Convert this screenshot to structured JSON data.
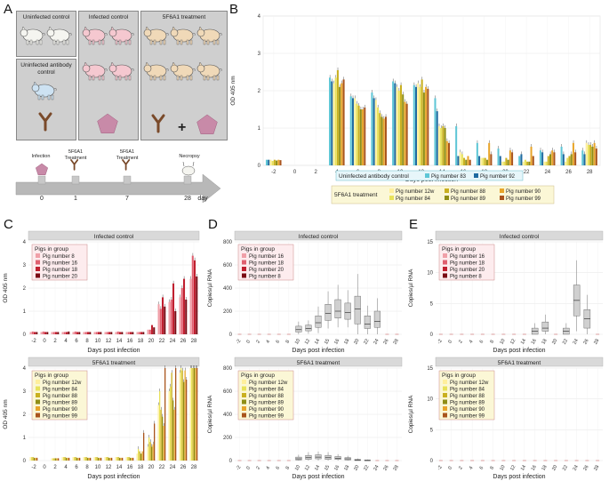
{
  "panels": {
    "a": "A",
    "b": "B",
    "c": "C",
    "d": "D",
    "e": "E"
  },
  "panel_a": {
    "groups": [
      "Uninfected control",
      "Infected control",
      "5F6A1 treatment",
      "Uninfected antibody control"
    ],
    "plus": "+",
    "timeline": {
      "events": [
        {
          "label": "Infection",
          "day": "0"
        },
        {
          "label": "5F6A1 Treatment",
          "day": "1"
        },
        {
          "label": "5F6A1 Treatment",
          "day": "7"
        },
        {
          "label": "Necropsy",
          "day": "28"
        }
      ],
      "unit": "day"
    }
  },
  "chart_data": [
    {
      "id": "B",
      "type": "bar",
      "xlabel": "Days post infection",
      "ylabel": "OD 405 nm",
      "ylim": [
        0,
        4
      ],
      "yticks": [
        "0",
        "1",
        "2",
        "3",
        "4"
      ],
      "categories": [
        "-2",
        "0",
        "2",
        "4",
        "6",
        "8",
        "10",
        "12",
        "14",
        "16",
        "18",
        "20",
        "22",
        "24",
        "26",
        "28"
      ],
      "legend1_title": "Uninfected antibody control",
      "legend1": [
        {
          "name": "Pig number 83",
          "color": "#5ec6d6"
        },
        {
          "name": "Pig number 92",
          "color": "#1f6aa0"
        }
      ],
      "legend2_title": "5F6A1 treatment",
      "legend2": [
        {
          "name": "Pig number 12w",
          "color": "#ffef9c"
        },
        {
          "name": "Pig number 84",
          "color": "#e8e25a"
        },
        {
          "name": "Pig number 88",
          "color": "#c9b020"
        },
        {
          "name": "Pig number 89",
          "color": "#8f8e15"
        },
        {
          "name": "Pig number 90",
          "color": "#e8a52a"
        },
        {
          "name": "Pig number 99",
          "color": "#a9541c"
        }
      ],
      "series": [
        {
          "name": "Pig number 83",
          "values": [
            0.15,
            null,
            null,
            2.35,
            1.85,
            1.95,
            2.25,
            2.15,
            1.8,
            1.05,
            0.6,
            0.45,
            0.25,
            0.4,
            0.5,
            0.4
          ]
        },
        {
          "name": "Pig number 92",
          "values": [
            0.15,
            null,
            null,
            2.25,
            1.8,
            1.8,
            2.2,
            2.1,
            1.45,
            0.25,
            0.25,
            0.25,
            0.3,
            0.35,
            0.3,
            0.3
          ]
        },
        {
          "name": "Pig number 12w",
          "values": [
            0.15,
            null,
            null,
            2.2,
            1.8,
            1.75,
            2.1,
            2.2,
            1.05,
            0.35,
            0.2,
            0.1,
            0.1,
            0.1,
            0.1,
            0.6
          ]
        },
        {
          "name": "Pig number 84",
          "values": [
            0.12,
            null,
            null,
            2.35,
            1.65,
            1.55,
            2.0,
            2.1,
            1.0,
            0.3,
            0.2,
            0.1,
            0.15,
            0.1,
            0.2,
            0.55
          ]
        },
        {
          "name": "Pig number 88",
          "values": [
            0.15,
            null,
            null,
            2.55,
            1.6,
            1.4,
            2.15,
            2.3,
            1.05,
            0.2,
            0.2,
            0.2,
            0.1,
            0.25,
            0.25,
            0.55
          ]
        },
        {
          "name": "Pig number 89",
          "values": [
            0.13,
            null,
            null,
            2.1,
            1.5,
            1.3,
            1.9,
            1.95,
            1.0,
            0.15,
            0.15,
            0.15,
            0.1,
            0.3,
            0.3,
            0.5
          ]
        },
        {
          "name": "Pig number 90",
          "values": [
            0.15,
            null,
            null,
            2.2,
            1.5,
            1.25,
            1.7,
            2.1,
            0.65,
            0.25,
            0.6,
            0.4,
            0.5,
            0.4,
            0.6,
            0.6
          ]
        },
        {
          "name": "Pig number 99",
          "values": [
            0.14,
            null,
            null,
            2.3,
            1.55,
            1.3,
            1.65,
            2.05,
            0.6,
            0.15,
            0.3,
            0.35,
            0.25,
            0.35,
            0.35,
            0.45
          ]
        }
      ]
    },
    {
      "id": "C-top",
      "type": "bar",
      "title": "Infected control",
      "xlabel": "Days post infection",
      "ylabel": "OD 405 nm",
      "ylim": [
        0,
        4
      ],
      "yticks": [
        "0",
        "1",
        "2",
        "3",
        "4"
      ],
      "categories": [
        "-2",
        "0",
        "2",
        "4",
        "6",
        "8",
        "10",
        "12",
        "14",
        "16",
        "18",
        "20",
        "22",
        "24",
        "26",
        "28"
      ],
      "legend_title": "Pigs in group",
      "series": [
        {
          "name": "Pig number 8",
          "color": "#f0a0a8",
          "values": [
            0.1,
            0.1,
            0.1,
            0.1,
            0.1,
            0.1,
            0.1,
            0.1,
            0.1,
            0.1,
            0.1,
            0.2,
            1.3,
            1.4,
            1.6,
            2.4
          ]
        },
        {
          "name": "Pig number 16",
          "color": "#e06070",
          "values": [
            0.12,
            0.12,
            0.1,
            0.1,
            0.12,
            0.1,
            0.1,
            0.1,
            0.12,
            0.1,
            0.1,
            0.2,
            1.1,
            1.5,
            2.0,
            3.4
          ]
        },
        {
          "name": "Pig number 18",
          "color": "#c02030",
          "values": [
            0.1,
            0.1,
            0.1,
            0.1,
            0.1,
            0.1,
            0.1,
            0.1,
            0.1,
            0.1,
            0.1,
            0.4,
            1.6,
            2.2,
            2.4,
            3.2
          ]
        },
        {
          "name": "Pig number 20",
          "color": "#7a0a14",
          "values": [
            0.1,
            0.1,
            0.1,
            0.12,
            0.1,
            0.1,
            0.1,
            0.1,
            0.1,
            0.1,
            0.1,
            0.3,
            1.2,
            1.0,
            1.5,
            2.5
          ]
        }
      ]
    },
    {
      "id": "C-bottom",
      "type": "bar",
      "title": "5F6A1 treatment",
      "xlabel": "Days post infection",
      "ylabel": "OD 405 nm",
      "ylim": [
        0,
        4
      ],
      "yticks": [
        "0",
        "1",
        "2",
        "3",
        "4"
      ],
      "categories": [
        "-2",
        "0",
        "2",
        "4",
        "6",
        "8",
        "10",
        "12",
        "14",
        "16",
        "18",
        "20",
        "22",
        "24",
        "26",
        "28"
      ],
      "legend_title": "Pigs in group",
      "series": [
        {
          "name": "Pig number 12w",
          "color": "#ffef9c",
          "values": [
            0.15,
            null,
            0.1,
            0.15,
            0.15,
            0.15,
            0.15,
            0.15,
            0.15,
            0.15,
            0.3,
            0.6,
            2.4,
            3.0,
            3.8,
            4.0
          ]
        },
        {
          "name": "Pig number 84",
          "color": "#e8e25a",
          "values": [
            0.15,
            null,
            0.1,
            0.15,
            0.15,
            0.15,
            0.15,
            0.15,
            0.15,
            0.15,
            0.5,
            1.0,
            3.0,
            3.2,
            4.0,
            4.0
          ]
        },
        {
          "name": "Pig number 88",
          "color": "#c9b020",
          "values": [
            0.15,
            null,
            0.1,
            0.15,
            0.15,
            0.15,
            0.15,
            0.15,
            0.15,
            0.15,
            0.4,
            0.8,
            2.2,
            3.8,
            3.9,
            4.0
          ]
        },
        {
          "name": "Pig number 89",
          "color": "#8f8e15",
          "values": [
            0.12,
            null,
            0.1,
            0.12,
            0.12,
            0.12,
            0.12,
            0.12,
            0.12,
            0.12,
            0.3,
            0.6,
            1.9,
            2.6,
            3.4,
            4.0
          ]
        },
        {
          "name": "Pig number 90",
          "color": "#e8a52a",
          "values": [
            0.12,
            null,
            0.1,
            0.12,
            0.12,
            0.12,
            0.12,
            0.12,
            0.12,
            0.12,
            0.4,
            0.7,
            1.5,
            2.2,
            3.9,
            4.0
          ]
        },
        {
          "name": "Pig number 99",
          "color": "#a9541c",
          "values": [
            0.12,
            null,
            0.1,
            0.12,
            0.12,
            0.12,
            0.12,
            0.12,
            0.12,
            0.12,
            1.2,
            1.6,
            4.0,
            4.0,
            3.5,
            4.0
          ]
        }
      ]
    },
    {
      "id": "D-top",
      "type": "box",
      "title": "Infected control",
      "xlabel": "Days post infection",
      "ylabel": "Copies/µl RNA",
      "ylim": [
        0,
        800
      ],
      "yticks": [
        "0",
        "200",
        "400",
        "600",
        "800"
      ],
      "categories": [
        "-2",
        "0",
        "2",
        "4",
        "6",
        "8",
        "10",
        "12",
        "14",
        "15",
        "16",
        "18",
        "20",
        "22",
        "24",
        "26",
        "28"
      ],
      "legend_title": "Pigs in group",
      "legend": [
        "Pig number 16",
        "Pig number 18",
        "Pig number 20",
        "Pig number 8"
      ],
      "boxes": [
        {
          "q1": 0,
          "med": 0,
          "q3": 0
        },
        {
          "q1": 0,
          "med": 0,
          "q3": 0
        },
        {
          "q1": 0,
          "med": 0,
          "q3": 0
        },
        {
          "q1": 0,
          "med": 0,
          "q3": 0
        },
        {
          "q1": 0,
          "med": 0,
          "q3": 0
        },
        {
          "q1": 0,
          "med": 0,
          "q3": 0
        },
        {
          "q1": 20,
          "med": 40,
          "q3": 70
        },
        {
          "q1": 30,
          "med": 50,
          "q3": 80
        },
        {
          "q1": 60,
          "med": 100,
          "q3": 160
        },
        {
          "q1": 120,
          "med": 180,
          "q3": 260
        },
        {
          "q1": 140,
          "med": 200,
          "q3": 300
        },
        {
          "q1": 130,
          "med": 190,
          "q3": 270
        },
        {
          "q1": 90,
          "med": 220,
          "q3": 330
        },
        {
          "q1": 50,
          "med": 90,
          "q3": 160
        },
        {
          "q1": 60,
          "med": 110,
          "q3": 200
        },
        {
          "q1": 0,
          "med": 0,
          "q3": 0
        },
        {
          "q1": 0,
          "med": 0,
          "q3": 0
        }
      ]
    },
    {
      "id": "D-bottom",
      "type": "box",
      "title": "5F6A1 treatment",
      "xlabel": "Days post infection",
      "ylabel": "Copies/µl RNA",
      "ylim": [
        0,
        800
      ],
      "yticks": [
        "0",
        "200",
        "400",
        "600",
        "800"
      ],
      "categories": [
        "-2",
        "0",
        "2",
        "4",
        "6",
        "8",
        "10",
        "12",
        "14",
        "15",
        "16",
        "18",
        "20",
        "22",
        "24",
        "26",
        "28"
      ],
      "legend_title": "Pigs in group",
      "legend": [
        "Pig number 12w",
        "Pig number 84",
        "Pig number 88",
        "Pig number 89",
        "Pig number 90",
        "Pig number 99"
      ],
      "boxes": [
        {
          "q1": 0,
          "med": 0,
          "q3": 0
        },
        {
          "q1": 0,
          "med": 0,
          "q3": 0
        },
        {
          "q1": 0,
          "med": 0,
          "q3": 0
        },
        {
          "q1": 0,
          "med": 0,
          "q3": 0
        },
        {
          "q1": 0,
          "med": 0,
          "q3": 0
        },
        {
          "q1": 0,
          "med": 0,
          "q3": 0
        },
        {
          "q1": 5,
          "med": 15,
          "q3": 30
        },
        {
          "q1": 10,
          "med": 25,
          "q3": 45
        },
        {
          "q1": 15,
          "med": 30,
          "q3": 50
        },
        {
          "q1": 10,
          "med": 25,
          "q3": 45
        },
        {
          "q1": 10,
          "med": 20,
          "q3": 35
        },
        {
          "q1": 5,
          "med": 15,
          "q3": 25
        },
        {
          "q1": 0,
          "med": 5,
          "q3": 10
        },
        {
          "q1": 0,
          "med": 0,
          "q3": 5
        },
        {
          "q1": 0,
          "med": 0,
          "q3": 0
        },
        {
          "q1": 0,
          "med": 0,
          "q3": 0
        },
        {
          "q1": 0,
          "med": 0,
          "q3": 0
        }
      ]
    },
    {
      "id": "E-top",
      "type": "box",
      "title": "Infected control",
      "xlabel": "Days post infection",
      "ylabel": "Copies/µl RNA",
      "ylim": [
        0,
        15
      ],
      "yticks": [
        "0",
        "5",
        "10",
        "15"
      ],
      "categories": [
        "-2",
        "0",
        "2",
        "4",
        "6",
        "8",
        "10",
        "12",
        "14",
        "16",
        "18",
        "20",
        "22",
        "24",
        "26",
        "28"
      ],
      "legend_title": "Pigs in group",
      "legend": [
        "Pig number 16",
        "Pig number 18",
        "Pig number 20",
        "Pig number 8"
      ],
      "boxes": [
        {
          "q1": 0,
          "med": 0,
          "q3": 0
        },
        {
          "q1": 0,
          "med": 0,
          "q3": 0
        },
        {
          "q1": 0,
          "med": 0,
          "q3": 0
        },
        {
          "q1": 0,
          "med": 0,
          "q3": 0
        },
        {
          "q1": 0,
          "med": 0,
          "q3": 0
        },
        {
          "q1": 0,
          "med": 0,
          "q3": 0
        },
        {
          "q1": 0,
          "med": 0,
          "q3": 0
        },
        {
          "q1": 0,
          "med": 0,
          "q3": 0
        },
        {
          "q1": 0,
          "med": 0,
          "q3": 0
        },
        {
          "q1": 0,
          "med": 0.5,
          "q3": 1
        },
        {
          "q1": 0.5,
          "med": 1,
          "q3": 2
        },
        {
          "q1": 0,
          "med": 0,
          "q3": 0
        },
        {
          "q1": 0,
          "med": 0.5,
          "q3": 1
        },
        {
          "q1": 3,
          "med": 5.5,
          "q3": 8
        },
        {
          "q1": 1,
          "med": 2.5,
          "q3": 4
        },
        {
          "q1": 0,
          "med": 0,
          "q3": 0
        }
      ]
    },
    {
      "id": "E-bottom",
      "type": "box",
      "title": "5F6A1 treatment",
      "xlabel": "Days post infection",
      "ylabel": "Copies/µl RNA",
      "ylim": [
        0,
        15
      ],
      "yticks": [
        "0",
        "5",
        "10",
        "15"
      ],
      "categories": [
        "-2",
        "0",
        "2",
        "4",
        "6",
        "8",
        "10",
        "12",
        "14",
        "16",
        "18",
        "20",
        "22",
        "24",
        "26",
        "28"
      ],
      "legend_title": "Pigs in group",
      "legend": [
        "Pig number 12w",
        "Pig number 84",
        "Pig number 88",
        "Pig number 89",
        "Pig number 90",
        "Pig number 99"
      ],
      "boxes": [
        {
          "q1": 0,
          "med": 0,
          "q3": 0
        },
        {
          "q1": 0,
          "med": 0,
          "q3": 0
        },
        {
          "q1": 0,
          "med": 0,
          "q3": 0
        },
        {
          "q1": 0,
          "med": 0,
          "q3": 0
        },
        {
          "q1": 0,
          "med": 0,
          "q3": 0
        },
        {
          "q1": 0,
          "med": 0,
          "q3": 0
        },
        {
          "q1": 0,
          "med": 0,
          "q3": 0
        },
        {
          "q1": 0,
          "med": 0,
          "q3": 0
        },
        {
          "q1": 0,
          "med": 0,
          "q3": 0
        },
        {
          "q1": 0,
          "med": 0,
          "q3": 0
        },
        {
          "q1": 0,
          "med": 0,
          "q3": 0
        },
        {
          "q1": 0,
          "med": 0,
          "q3": 0
        },
        {
          "q1": 0,
          "med": 0,
          "q3": 0
        },
        {
          "q1": 0,
          "med": 0,
          "q3": 0
        },
        {
          "q1": 0,
          "med": 0,
          "q3": 0
        },
        {
          "q1": 0,
          "med": 0,
          "q3": 0
        }
      ]
    }
  ]
}
